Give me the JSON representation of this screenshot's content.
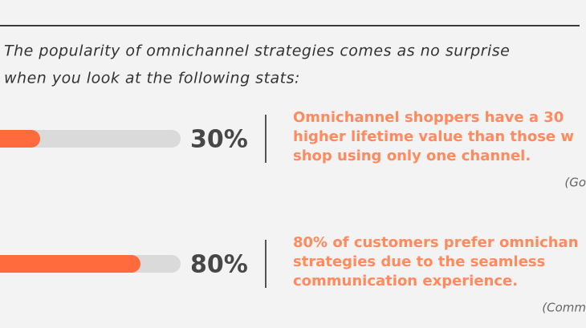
{
  "intro": [
    "The popularity of omnichannel strategies comes as no surprise",
    "when you look at the following stats:"
  ],
  "xlim": [
    0,
    100
  ],
  "stats": [
    {
      "value": 30,
      "value_label": "30%",
      "lines": [
        "Omnichannel shoppers have a 30",
        "higher lifetime value than those w",
        "shop using only one channel."
      ],
      "source": "(Go"
    },
    {
      "value": 80,
      "value_label": "80%",
      "lines": [
        "80% of customers prefer omnichan",
        "strategies due to the seamless",
        "communication experience."
      ],
      "source": "(Comm"
    }
  ],
  "colors": {
    "bar": "#ff6b3d",
    "track": "#dadada",
    "text": "#ff8a5e"
  }
}
